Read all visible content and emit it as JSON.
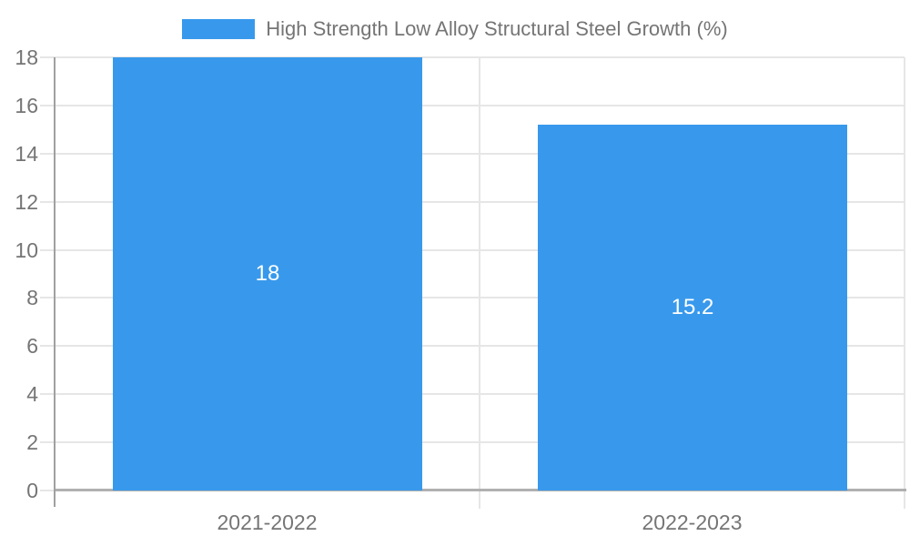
{
  "chart_data": {
    "type": "bar",
    "title": "High Strength Low Alloy Structural Steel Growth (%)",
    "categories": [
      "2021-2022",
      "2022-2023"
    ],
    "values": [
      18,
      15.2
    ],
    "value_labels": [
      "18",
      "15.2"
    ],
    "xlabel": "",
    "ylabel": "",
    "ylim": [
      0,
      18
    ],
    "ytick_step": 2,
    "grid": true,
    "legend_position": "top",
    "colors": {
      "bar": "#3899ec",
      "axis_text": "#757575",
      "value_label_text": "#ffffff",
      "gridline": "#e6e6e6",
      "axis_line": "#a0a0a0",
      "baseline": "#b0b0b0",
      "background": "#ffffff"
    }
  }
}
